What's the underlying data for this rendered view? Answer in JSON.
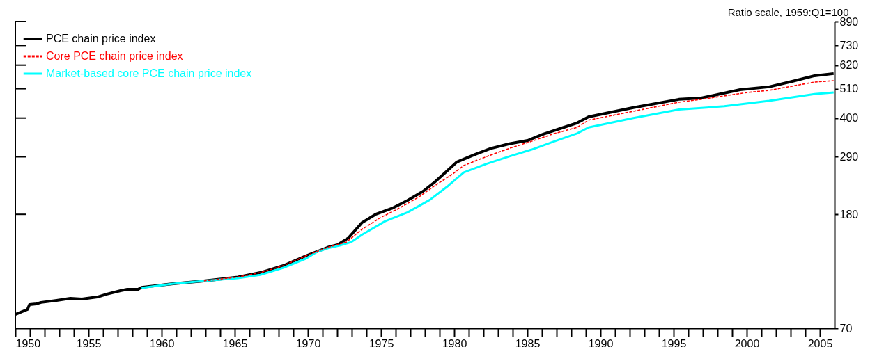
{
  "chart_data": {
    "type": "line",
    "ylabel": "Ratio scale, 1959:Q1=100",
    "log": "y",
    "legend": "top left",
    "grid": false,
    "xlim": [
      1950,
      2006
    ],
    "xticks": [
      1950,
      {
        "value": 1951,
        "label": null
      },
      {
        "value": 1952,
        "label": null
      },
      {
        "value": 1953,
        "label": null
      },
      {
        "value": 1954,
        "label": null
      },
      1955,
      {
        "value": 1956,
        "label": null
      },
      {
        "value": 1957,
        "label": null
      },
      {
        "value": 1958,
        "label": null
      },
      {
        "value": 1959,
        "label": null
      },
      1960,
      {
        "value": 1961,
        "label": null
      },
      {
        "value": 1962,
        "label": null
      },
      {
        "value": 1963,
        "label": null
      },
      {
        "value": 1964,
        "label": null
      },
      1965,
      {
        "value": 1966,
        "label": null
      },
      {
        "value": 1967,
        "label": null
      },
      {
        "value": 1968,
        "label": null
      },
      {
        "value": 1969,
        "label": null
      },
      1970,
      {
        "value": 1971,
        "label": null
      },
      {
        "value": 1972,
        "label": null
      },
      {
        "value": 1973,
        "label": null
      },
      {
        "value": 1974,
        "label": null
      },
      1975,
      {
        "value": 1976,
        "label": null
      },
      {
        "value": 1977,
        "label": null
      },
      {
        "value": 1978,
        "label": null
      },
      {
        "value": 1979,
        "label": null
      },
      1980,
      {
        "value": 1981,
        "label": null
      },
      {
        "value": 1982,
        "label": null
      },
      {
        "value": 1983,
        "label": null
      },
      {
        "value": 1984,
        "label": null
      },
      1985,
      {
        "value": 1986,
        "label": null
      },
      {
        "value": 1987,
        "label": null
      },
      {
        "value": 1988,
        "label": null
      },
      {
        "value": 1989,
        "label": null
      },
      1990,
      {
        "value": 1991,
        "label": null
      },
      {
        "value": 1992,
        "label": null
      },
      {
        "value": 1993,
        "label": null
      },
      {
        "value": 1994,
        "label": null
      },
      1995,
      {
        "value": 1996,
        "label": null
      },
      {
        "value": 1997,
        "label": null
      },
      {
        "value": 1998,
        "label": null
      },
      {
        "value": 1999,
        "label": null
      },
      2000,
      {
        "value": 2001,
        "label": null
      },
      {
        "value": 2002,
        "label": null
      },
      {
        "value": 2003,
        "label": null
      },
      {
        "value": 2004,
        "label": null
      },
      2005
    ],
    "ylim": [
      70,
      890
    ],
    "yticks": [
      70,
      180,
      290,
      400,
      510,
      620,
      730,
      890
    ],
    "series": [
      {
        "name": "PCE chain price index",
        "color": "#000000",
        "line_style": "solid",
        "x": [
          1950.0,
          1950.83,
          1950.97,
          1951.44,
          1951.76,
          1952.83,
          1953.76,
          1954.55,
          1955.61,
          1956.26,
          1957.19,
          1957.65,
          1958.4,
          1958.63,
          1960.58,
          1962.89,
          1965.21,
          1966.74,
          1968.32,
          1969.85,
          1971.38,
          1972.03,
          1972.77,
          1973.7,
          1974.63,
          1975.74,
          1976.81,
          1977.88,
          1978.66,
          1979.45,
          1980.19,
          1981.45,
          1982.51,
          1983.77,
          1985.02,
          1986.09,
          1987.48,
          1988.4,
          1989.19,
          1992.25,
          1995.36,
          1996.89,
          1999.54,
          2001.53,
          2003.11,
          2004.64,
          2005.94
        ],
        "values": [
          78.5,
          81.8,
          85.2,
          85.7,
          86.7,
          88.2,
          89.7,
          89.2,
          90.7,
          92.9,
          95.6,
          96.7,
          96.7,
          98.3,
          101,
          103.6,
          107,
          111,
          117.6,
          127.5,
          137,
          139.9,
          148,
          168,
          180,
          189,
          202,
          218,
          235,
          256,
          278,
          296,
          311,
          323,
          332,
          350,
          370,
          384,
          404,
          436,
          467,
          472,
          506,
          518,
          542,
          568,
          578
        ]
      },
      {
        "name": "Core PCE chain price index",
        "color": "#ff0000",
        "line_style": "dashed",
        "x": [
          1962.89,
          1965.21,
          1966.74,
          1968.32,
          1969.85,
          1971.38,
          1972.63,
          1973.7,
          1974.95,
          1976.21,
          1977.6,
          1978.66,
          1979.92,
          1980.66,
          1982.24,
          1983.77,
          1985.3,
          1986.87,
          1988.4,
          1989.19,
          1992.25,
          1995.36,
          1996.89,
          2000.0,
          2001.53,
          2003.11,
          2004.64,
          2005.94
        ],
        "values": [
          103.6,
          107,
          111,
          117.6,
          127.5,
          137,
          143,
          159,
          175,
          189,
          208,
          228,
          252,
          270,
          291,
          311,
          330,
          352,
          370,
          393,
          423,
          456,
          467,
          494,
          503,
          521,
          539,
          545
        ]
      },
      {
        "name": "Market-based core PCE chain price index",
        "color": "#00ffff",
        "line_style": "solid",
        "x": [
          1958.63,
          1960.58,
          1962.89,
          1965.21,
          1966.74,
          1968.32,
          1969.85,
          1970.64,
          1971.38,
          1972.17,
          1972.96,
          1973.7,
          1975.28,
          1976.81,
          1978.34,
          1979.59,
          1980.66,
          1982.24,
          1983.77,
          1985.3,
          1986.87,
          1988.4,
          1989.19,
          1992.25,
          1995.36,
          1998.47,
          2001.53,
          2004.64,
          2005.94
        ],
        "values": [
          97.8,
          101,
          103.6,
          106,
          109,
          115.6,
          124.6,
          132,
          136,
          139,
          143,
          152,
          170,
          183,
          203,
          228,
          255,
          274,
          291,
          308,
          330,
          352,
          370,
          400,
          429,
          441,
          461,
          488,
          494
        ]
      }
    ]
  }
}
